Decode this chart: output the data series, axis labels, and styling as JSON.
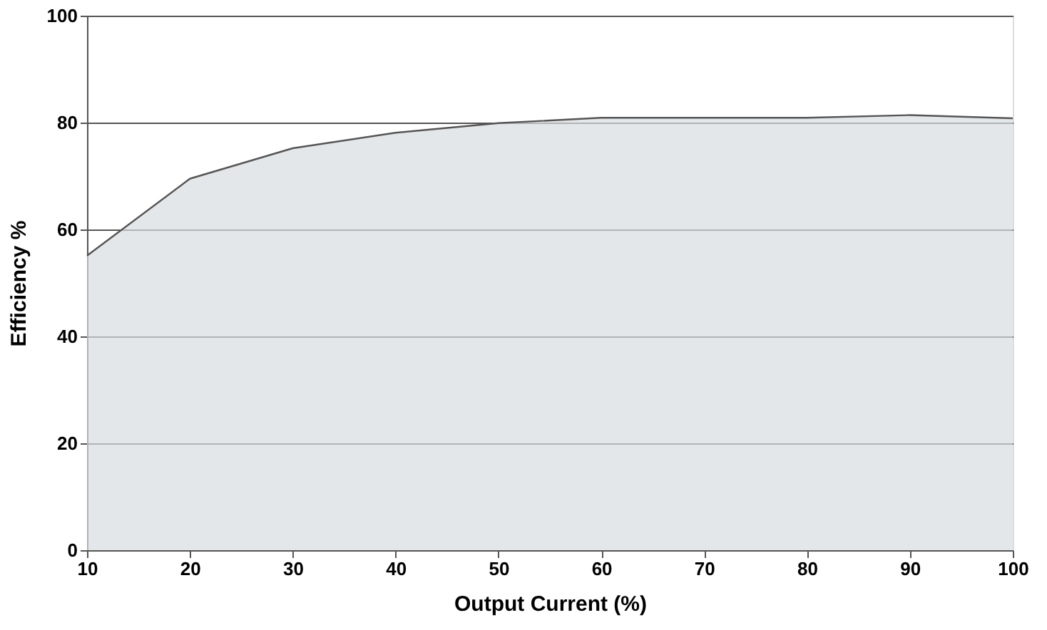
{
  "chart_data": {
    "type": "area",
    "xlabel": "Output Current (%)",
    "ylabel": "Efficiency %",
    "x": [
      10,
      20,
      30,
      40,
      50,
      60,
      70,
      80,
      90,
      100
    ],
    "series": [
      {
        "color": "#d8dde0",
        "values": [
          55.1,
          69.5,
          75.2,
          78.1,
          79.9,
          80.9,
          80.9,
          80.9,
          81.4,
          80.8
        ]
      }
    ],
    "xlim": [
      10,
      100
    ],
    "ylim": [
      0,
      100
    ],
    "xticks": [
      10,
      20,
      30,
      40,
      50,
      60,
      70,
      80,
      90,
      100
    ],
    "yticks": [
      0,
      20,
      40,
      60,
      80,
      100
    ],
    "grid": "y"
  }
}
